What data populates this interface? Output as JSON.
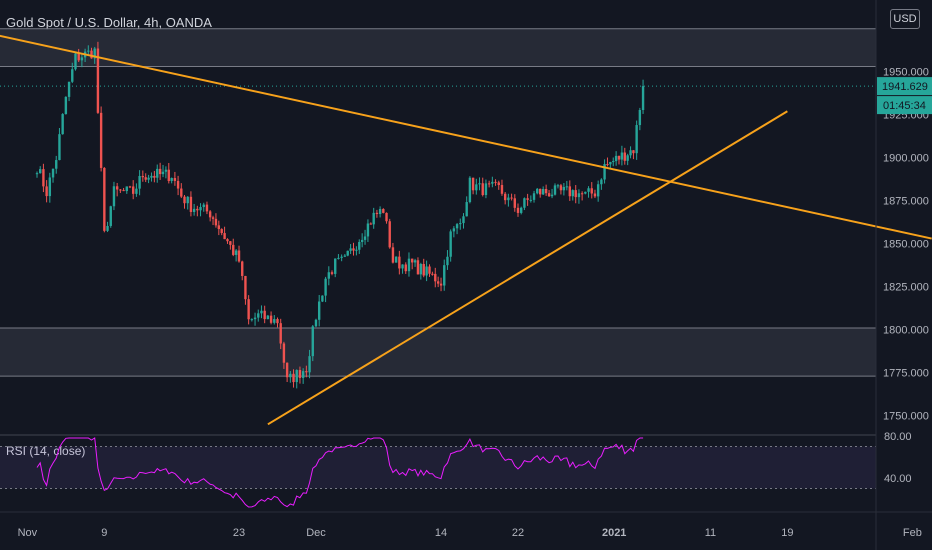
{
  "header": {
    "title": "Gold Spot / U.S. Dollar, 4h, OANDA"
  },
  "currency_button": "USD",
  "rsi": {
    "label": "RSI (14, close)",
    "ticks": [
      "80.00",
      "40.00"
    ]
  },
  "price_tag": {
    "price": "1941.629",
    "countdown": "01:45:34"
  },
  "colors": {
    "bg": "#131722",
    "up": "#26a69a",
    "down": "#ef5350",
    "trendline": "#f7a21b",
    "rsi": "#e91eff",
    "zone": "#2a2e39"
  },
  "chart_data": {
    "type": "candlestick",
    "title": "Gold Spot / U.S. Dollar, 4h, OANDA",
    "price_axis": {
      "ticks": [
        "1950.000",
        "1925.000",
        "1900.000",
        "1875.000",
        "1850.000",
        "1825.000",
        "1800.000",
        "1775.000",
        "1750.000"
      ]
    },
    "time_axis": {
      "ticks": [
        "Nov",
        "9",
        "23",
        "Dec",
        "14",
        "22",
        "2021",
        "11",
        "19",
        "Feb"
      ]
    },
    "last_price": 1941.629,
    "anchors": [
      [
        "Nov 2",
        1895
      ],
      [
        "Nov 3",
        1880
      ],
      [
        "Nov 4",
        1900
      ],
      [
        "Nov 5",
        1935
      ],
      [
        "Nov 6",
        1958
      ],
      [
        "Nov 8",
        1962
      ],
      [
        "Nov 9",
        1855
      ],
      [
        "Nov 10",
        1880
      ],
      [
        "Nov 12",
        1880
      ],
      [
        "Nov 13",
        1890
      ],
      [
        "Nov 16",
        1890
      ],
      [
        "Nov 17",
        1878
      ],
      [
        "Nov 18",
        1872
      ],
      [
        "Nov 19",
        1870
      ],
      [
        "Nov 20",
        1868
      ],
      [
        "Nov 23",
        1840
      ],
      [
        "Nov 24",
        1805
      ],
      [
        "Nov 25",
        1808
      ],
      [
        "Nov 27",
        1805
      ],
      [
        "Nov 28",
        1770
      ],
      [
        "Nov 30",
        1778
      ],
      [
        "Dec 1",
        1808
      ],
      [
        "Dec 2",
        1830
      ],
      [
        "Dec 3",
        1838
      ],
      [
        "Dec 4",
        1840
      ],
      [
        "Dec 7",
        1866
      ],
      [
        "Dec 8",
        1870
      ],
      [
        "Dec 9",
        1840
      ],
      [
        "Dec 10",
        1838
      ],
      [
        "Dec 11",
        1838
      ],
      [
        "Dec 14",
        1828
      ],
      [
        "Dec 15",
        1855
      ],
      [
        "Dec 16",
        1862
      ],
      [
        "Dec 17",
        1885
      ],
      [
        "Dec 18",
        1882
      ],
      [
        "Dec 20",
        1882
      ],
      [
        "Dec 21",
        1875
      ],
      [
        "Dec 22",
        1870
      ],
      [
        "Dec 23",
        1875
      ],
      [
        "Dec 24",
        1880
      ],
      [
        "Dec 28",
        1880
      ],
      [
        "Dec 29",
        1878
      ],
      [
        "Dec 30",
        1880
      ],
      [
        "Dec 31",
        1895
      ],
      [
        "Jan 3",
        1905
      ],
      [
        "Jan 4",
        1941.6
      ]
    ],
    "horizontal_zones": [
      {
        "from": 1953,
        "to": 1975
      },
      {
        "from": 1773,
        "to": 1801
      }
    ],
    "trendlines": [
      {
        "from": [
          "Oct 29",
          1971
        ],
        "to": [
          "Feb 3",
          1853
        ]
      },
      {
        "from": [
          "Nov 26",
          1745
        ],
        "to": [
          "Jan 19",
          1927
        ]
      }
    ],
    "rsi": {
      "overbought": 70,
      "oversold": 30,
      "last": 76
    }
  }
}
